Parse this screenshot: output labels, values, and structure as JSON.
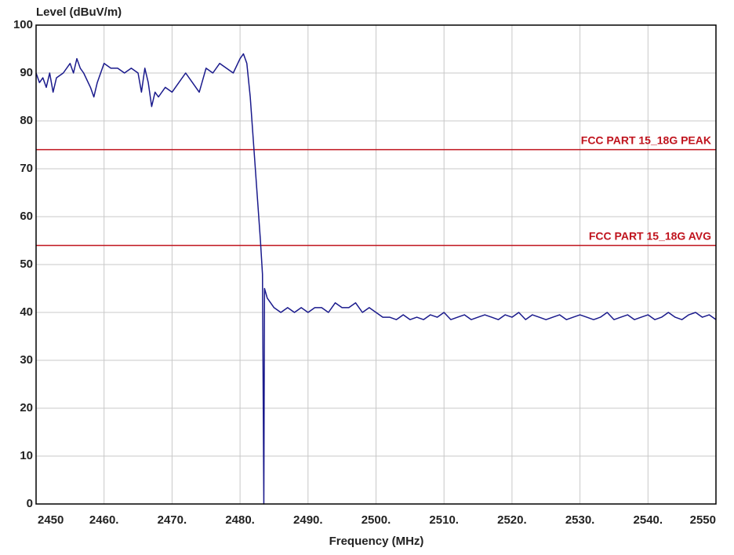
{
  "chart_data": {
    "type": "line",
    "y_label": "Level (dBuV/m)",
    "x_label": "Frequency (MHz)",
    "xlim": [
      2450,
      2550
    ],
    "ylim": [
      0,
      100
    ],
    "xticks": [
      2450,
      {
        "value": 2460,
        "label": "2460."
      },
      {
        "value": 2470,
        "label": "2470."
      },
      {
        "value": 2480,
        "label": "2480."
      },
      {
        "value": 2490,
        "label": "2490."
      },
      {
        "value": 2500,
        "label": "2500."
      },
      {
        "value": 2510,
        "label": "2510."
      },
      {
        "value": 2520,
        "label": "2520."
      },
      {
        "value": 2530,
        "label": "2530."
      },
      {
        "value": 2540,
        "label": "2540."
      },
      2550
    ],
    "yticks": [
      0,
      10,
      20,
      30,
      40,
      50,
      60,
      70,
      80,
      90,
      100
    ],
    "grid": true,
    "limits": [
      {
        "label": "FCC PART 15_18G PEAK",
        "value": 74,
        "color": "#c0141e"
      },
      {
        "label": "FCC PART 15_18G AVG",
        "value": 54,
        "color": "#c0141e"
      }
    ],
    "x": [
      2450,
      2450.5,
      2451,
      2451.5,
      2452,
      2452.5,
      2453,
      2454,
      2455,
      2455.5,
      2456,
      2456.5,
      2457,
      2458,
      2458.5,
      2459,
      2460,
      2461,
      2462,
      2463,
      2464,
      2465,
      2465.5,
      2466,
      2466.5,
      2467,
      2467.5,
      2468,
      2469,
      2470,
      2471,
      2472,
      2473,
      2474,
      2475,
      2476,
      2477,
      2478,
      2479,
      2480,
      2480.5,
      2481,
      2481.5,
      2482,
      2482.5,
      2483,
      2483.3,
      2483.5,
      2483.6,
      2484,
      2485,
      2486,
      2487,
      2488,
      2489,
      2490,
      2491,
      2492,
      2493,
      2494,
      2495,
      2496,
      2497,
      2498,
      2499,
      2500,
      2501,
      2502,
      2503,
      2504,
      2505,
      2506,
      2507,
      2508,
      2509,
      2510,
      2511,
      2512,
      2513,
      2514,
      2515,
      2516,
      2517,
      2518,
      2519,
      2520,
      2521,
      2522,
      2523,
      2524,
      2525,
      2526,
      2527,
      2528,
      2529,
      2530,
      2531,
      2532,
      2533,
      2534,
      2535,
      2536,
      2537,
      2538,
      2539,
      2540,
      2541,
      2542,
      2543,
      2544,
      2545,
      2546,
      2547,
      2548,
      2549,
      2550
    ],
    "series": [
      {
        "name": "Level",
        "color": "#1a1a8c",
        "values": [
          90,
          88,
          89,
          87,
          90,
          86,
          89,
          90,
          92,
          90,
          93,
          91,
          90,
          87,
          85,
          88,
          92,
          91,
          91,
          90,
          91,
          90,
          86,
          91,
          88,
          83,
          86,
          85,
          87,
          86,
          88,
          90,
          88,
          86,
          91,
          90,
          92,
          91,
          90,
          93,
          94,
          92,
          85,
          75,
          65,
          55,
          48,
          0,
          45,
          43,
          41,
          40,
          41,
          40,
          41,
          40,
          41,
          41,
          40,
          42,
          41,
          41,
          42,
          40,
          41,
          40,
          39,
          39,
          38.5,
          39.5,
          38.5,
          39,
          38.5,
          39.5,
          39,
          40,
          38.5,
          39,
          39.5,
          38.5,
          39,
          39.5,
          39,
          38.5,
          39.5,
          39,
          40,
          38.5,
          39.5,
          39,
          38.5,
          39,
          39.5,
          38.5,
          39,
          39.5,
          39,
          38.5,
          39,
          40,
          38.5,
          39,
          39.5,
          38.5,
          39,
          39.5,
          38.5,
          39,
          40,
          39,
          38.5,
          39.5,
          40,
          39,
          39.5,
          38.5
        ]
      }
    ]
  }
}
